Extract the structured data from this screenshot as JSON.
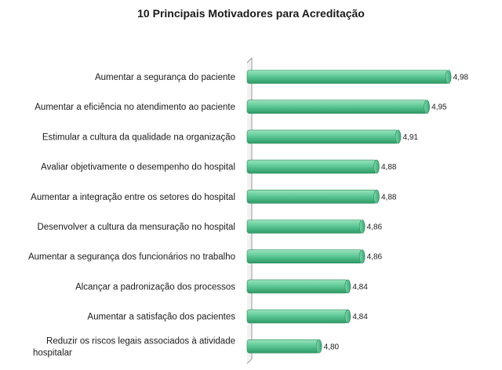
{
  "chart_data": {
    "type": "bar",
    "orientation": "horizontal",
    "title": "10 Principais Motivadores para Acreditação",
    "xlabel": "",
    "ylabel": "",
    "grid": false,
    "legend": "none",
    "xlim": [
      4.7,
      5.0
    ],
    "bar_color": "#55c38f",
    "categories": [
      "Aumentar a segurança do paciente",
      "Aumentar a eficiência no atendimento ao paciente",
      "Estimular a cultura da qualidade na organização",
      "Avaliar objetivamente o desempenho do hospital",
      "Aumentar a integração entre os setores do hospital",
      "Desenvolver a cultura da mensuração no hospital",
      "Aumentar a segurança dos funcionários no trabalho",
      "Alcançar a padronização dos processos",
      "Aumentar a satisfação dos pacientes",
      "Reduzir os riscos legais associados à atividade hospitalar"
    ],
    "values": [
      4.98,
      4.95,
      4.91,
      4.88,
      4.88,
      4.86,
      4.86,
      4.84,
      4.84,
      4.8
    ],
    "value_labels": [
      "4,98",
      "4,95",
      "4,91",
      "4,88",
      "4,88",
      "4,86",
      "4,86",
      "4,84",
      "4,84",
      "4,80"
    ]
  }
}
